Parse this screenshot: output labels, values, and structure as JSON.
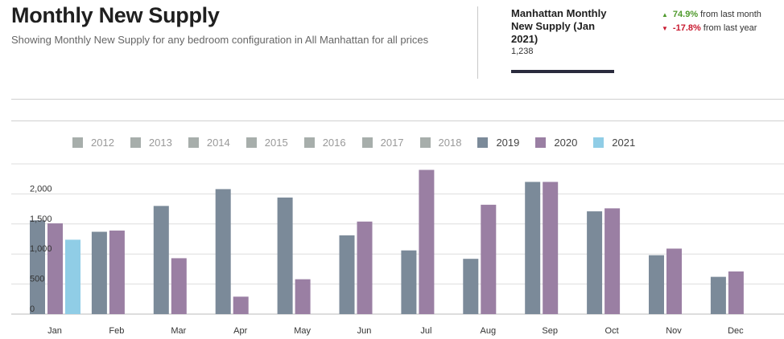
{
  "header": {
    "title": "Monthly New Supply",
    "subtitle": "Showing Monthly New Supply for any bedroom configuration in All Manhattan for all prices"
  },
  "stat": {
    "title": "Manhattan Monthly New Supply  (Jan 2021)",
    "value": "1,238",
    "changes": [
      {
        "direction": "up",
        "icon": "triangle-up-icon",
        "pct": "74.9%",
        "text": "from last month",
        "color": "#4f9a2c"
      },
      {
        "direction": "down",
        "icon": "triangle-down-icon",
        "pct": "-17.8%",
        "text": "from last year",
        "color": "#c8182e"
      }
    ]
  },
  "chart_data": {
    "type": "bar",
    "categories": [
      "Jan",
      "Feb",
      "Mar",
      "Apr",
      "May",
      "Jun",
      "Jul",
      "Aug",
      "Sep",
      "Oct",
      "Nov",
      "Dec"
    ],
    "legend": [
      {
        "name": "2012",
        "color": "#a7aeab",
        "active": false
      },
      {
        "name": "2013",
        "color": "#a7aeab",
        "active": false
      },
      {
        "name": "2014",
        "color": "#a7aeab",
        "active": false
      },
      {
        "name": "2015",
        "color": "#a7aeab",
        "active": false
      },
      {
        "name": "2016",
        "color": "#a7aeab",
        "active": false
      },
      {
        "name": "2017",
        "color": "#a7aeab",
        "active": false
      },
      {
        "name": "2018",
        "color": "#a7aeab",
        "active": false
      },
      {
        "name": "2019",
        "color": "#7b8a99",
        "active": true
      },
      {
        "name": "2020",
        "color": "#9a7fa3",
        "active": true
      },
      {
        "name": "2021",
        "color": "#90cde6",
        "active": true
      }
    ],
    "series": [
      {
        "name": "2019",
        "color": "#7b8a99",
        "values": [
          1560,
          1370,
          1800,
          2080,
          1940,
          1310,
          1060,
          920,
          2200,
          1710,
          980,
          620
        ]
      },
      {
        "name": "2020",
        "color": "#9a7fa3",
        "values": [
          1510,
          1390,
          930,
          290,
          580,
          1540,
          2400,
          1820,
          2200,
          1760,
          1090,
          710
        ]
      },
      {
        "name": "2021",
        "color": "#90cde6",
        "values": [
          1238,
          null,
          null,
          null,
          null,
          null,
          null,
          null,
          null,
          null,
          null,
          null
        ]
      }
    ],
    "yticks": [
      0,
      500,
      1000,
      1500,
      2000
    ],
    "ytick_labels": [
      "0",
      "500",
      "1,000",
      "1,500",
      "2,000"
    ],
    "ylim": [
      0,
      2500
    ],
    "grid": true,
    "legend_position": "top"
  }
}
